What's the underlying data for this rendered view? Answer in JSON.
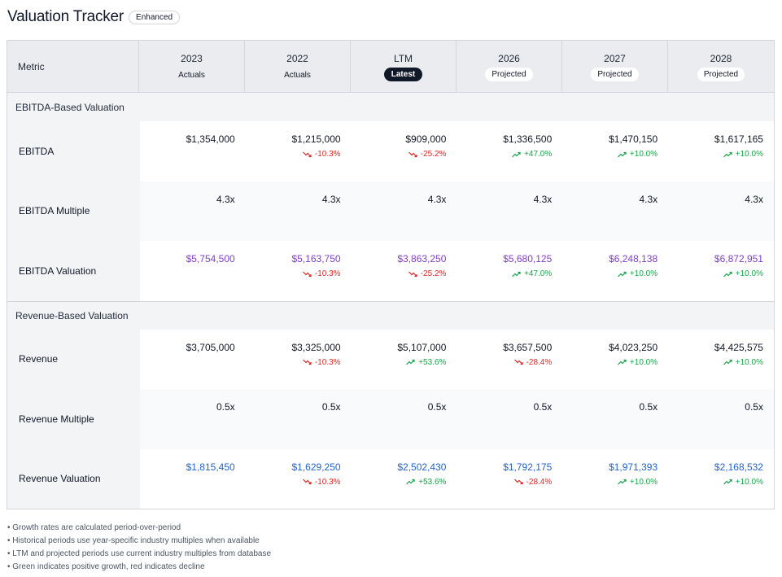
{
  "header": {
    "title": "Valuation Tracker",
    "badge": "Enhanced"
  },
  "table": {
    "metric_label": "Metric",
    "columns": [
      {
        "year": "2023",
        "sub": "Actuals",
        "style": "plain"
      },
      {
        "year": "2022",
        "sub": "Actuals",
        "style": "plain"
      },
      {
        "year": "LTM",
        "sub": "Latest",
        "style": "latest"
      },
      {
        "year": "2026",
        "sub": "Projected",
        "style": "pill"
      },
      {
        "year": "2027",
        "sub": "Projected",
        "style": "pill"
      },
      {
        "year": "2028",
        "sub": "Projected",
        "style": "pill"
      }
    ],
    "sections": [
      {
        "title": "EBITDA-Based Valuation",
        "rows": [
          {
            "label": "EBITDA",
            "color": "default",
            "cells": [
              {
                "value": "$1,354,000",
                "change": "",
                "dir": ""
              },
              {
                "value": "$1,215,000",
                "change": "-10.3%",
                "dir": "down"
              },
              {
                "value": "$909,000",
                "change": "-25.2%",
                "dir": "down"
              },
              {
                "value": "$1,336,500",
                "change": "+47.0%",
                "dir": "up"
              },
              {
                "value": "$1,470,150",
                "change": "+10.0%",
                "dir": "up"
              },
              {
                "value": "$1,617,165",
                "change": "+10.0%",
                "dir": "up"
              }
            ]
          },
          {
            "label": "EBITDA Multiple",
            "color": "default",
            "cells": [
              {
                "value": "4.3x",
                "change": "",
                "dir": ""
              },
              {
                "value": "4.3x",
                "change": "",
                "dir": ""
              },
              {
                "value": "4.3x",
                "change": "",
                "dir": ""
              },
              {
                "value": "4.3x",
                "change": "",
                "dir": ""
              },
              {
                "value": "4.3x",
                "change": "",
                "dir": ""
              },
              {
                "value": "4.3x",
                "change": "",
                "dir": ""
              }
            ]
          },
          {
            "label": "EBITDA Valuation",
            "color": "purple",
            "cells": [
              {
                "value": "$5,754,500",
                "change": "",
                "dir": ""
              },
              {
                "value": "$5,163,750",
                "change": "-10.3%",
                "dir": "down"
              },
              {
                "value": "$3,863,250",
                "change": "-25.2%",
                "dir": "down"
              },
              {
                "value": "$5,680,125",
                "change": "+47.0%",
                "dir": "up"
              },
              {
                "value": "$6,248,138",
                "change": "+10.0%",
                "dir": "up"
              },
              {
                "value": "$6,872,951",
                "change": "+10.0%",
                "dir": "up"
              }
            ]
          }
        ]
      },
      {
        "title": "Revenue-Based Valuation",
        "rows": [
          {
            "label": "Revenue",
            "color": "default",
            "cells": [
              {
                "value": "$3,705,000",
                "change": "",
                "dir": ""
              },
              {
                "value": "$3,325,000",
                "change": "-10.3%",
                "dir": "down"
              },
              {
                "value": "$5,107,000",
                "change": "+53.6%",
                "dir": "up"
              },
              {
                "value": "$3,657,500",
                "change": "-28.4%",
                "dir": "down"
              },
              {
                "value": "$4,023,250",
                "change": "+10.0%",
                "dir": "up"
              },
              {
                "value": "$4,425,575",
                "change": "+10.0%",
                "dir": "up"
              }
            ]
          },
          {
            "label": "Revenue Multiple",
            "color": "default",
            "cells": [
              {
                "value": "0.5x",
                "change": "",
                "dir": ""
              },
              {
                "value": "0.5x",
                "change": "",
                "dir": ""
              },
              {
                "value": "0.5x",
                "change": "",
                "dir": ""
              },
              {
                "value": "0.5x",
                "change": "",
                "dir": ""
              },
              {
                "value": "0.5x",
                "change": "",
                "dir": ""
              },
              {
                "value": "0.5x",
                "change": "",
                "dir": ""
              }
            ]
          },
          {
            "label": "Revenue Valuation",
            "color": "blue",
            "cells": [
              {
                "value": "$1,815,450",
                "change": "",
                "dir": ""
              },
              {
                "value": "$1,629,250",
                "change": "-10.3%",
                "dir": "down"
              },
              {
                "value": "$2,502,430",
                "change": "+53.6%",
                "dir": "up"
              },
              {
                "value": "$1,792,175",
                "change": "-28.4%",
                "dir": "down"
              },
              {
                "value": "$1,971,393",
                "change": "+10.0%",
                "dir": "up"
              },
              {
                "value": "$2,168,532",
                "change": "+10.0%",
                "dir": "up"
              }
            ]
          }
        ]
      }
    ]
  },
  "notes": [
    "• Growth rates are calculated period-over-period",
    "• Historical periods use year-specific industry multiples when available",
    "• LTM and projected periods use current industry multiples from database",
    "• Green indicates positive growth, red indicates decline"
  ],
  "colors": {
    "up": "#16a34a",
    "down": "#dc2626",
    "purple": "#7e3fc4",
    "blue": "#2563c9"
  }
}
